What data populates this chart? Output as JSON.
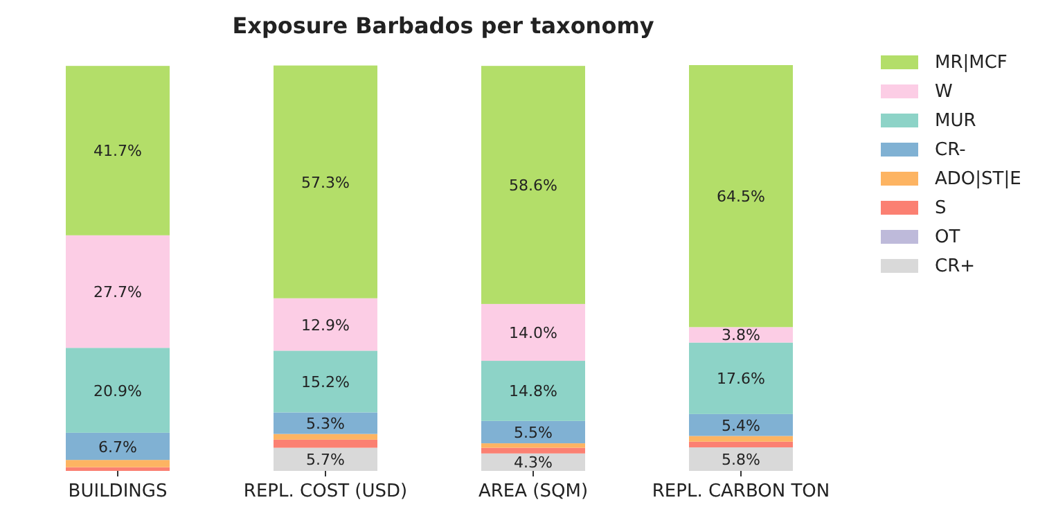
{
  "chart_data": {
    "type": "bar",
    "title": "Exposure Barbados per taxonomy",
    "stacked": true,
    "legend": "right",
    "categories": [
      "BUILDINGS",
      "REPL. COST (USD)",
      "AREA (SQM)",
      "REPL. CARBON TON"
    ],
    "series": [
      {
        "name": "CR+",
        "color": "#d9d9d9",
        "values": [
          0,
          5.7,
          4.3,
          5.8
        ],
        "value_labels": [
          null,
          "5.7%",
          "4.3%",
          "5.8%"
        ]
      },
      {
        "name": "OT",
        "color": "#bebada",
        "values": [
          null,
          null,
          null,
          null
        ],
        "value_labels": [
          null,
          null,
          null,
          null
        ]
      },
      {
        "name": "S",
        "color": "#fb8072",
        "values": [
          0.9,
          2.0,
          1.4,
          1.4
        ],
        "value_labels": [
          null,
          null,
          null,
          null
        ]
      },
      {
        "name": "ADO|ST|E",
        "color": "#fdb462",
        "values": [
          1.8,
          1.4,
          1.1,
          1.4
        ],
        "value_labels": [
          null,
          null,
          null,
          null
        ]
      },
      {
        "name": "CR-",
        "color": "#80b1d3",
        "values": [
          6.7,
          5.3,
          5.5,
          5.4
        ],
        "value_labels": [
          "6.7%",
          "5.3%",
          "5.5%",
          "5.4%"
        ]
      },
      {
        "name": "MUR",
        "color": "#8dd3c7",
        "values": [
          20.9,
          15.2,
          14.8,
          17.6
        ],
        "value_labels": [
          "20.9%",
          "15.2%",
          "14.8%",
          "17.6%"
        ]
      },
      {
        "name": "W",
        "color": "#fccde5",
        "values": [
          27.7,
          12.9,
          14.0,
          3.8
        ],
        "value_labels": [
          "27.7%",
          "12.9%",
          "14.0%",
          "3.8%"
        ]
      },
      {
        "name": "MR|MCF",
        "color": "#b3de69",
        "values": [
          41.7,
          57.3,
          58.6,
          64.5
        ],
        "value_labels": [
          "41.7%",
          "57.3%",
          "58.6%",
          "64.5%"
        ]
      }
    ]
  }
}
